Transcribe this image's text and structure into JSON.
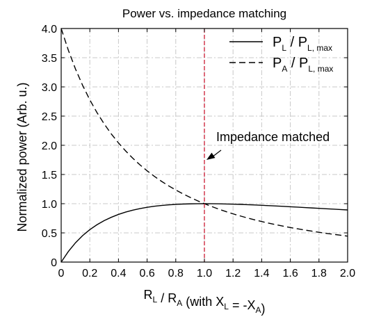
{
  "chart_data": {
    "type": "line",
    "title": "Power vs. impedance matching",
    "xlabel": {
      "parts": [
        {
          "text": "R",
          "sub": "L"
        },
        {
          "text": " / R",
          "sub": "A"
        },
        {
          "text": " (with X",
          "sub": "L"
        },
        {
          "text": " = -X",
          "sub": "A"
        },
        {
          "text": ")",
          "sub": ""
        }
      ]
    },
    "ylabel": "Normalized power (Arb. u.)",
    "xlim": [
      0,
      2.0
    ],
    "ylim": [
      0,
      4.0
    ],
    "xticks": [
      "0",
      "0.2",
      "0.4",
      "0.6",
      "0.8",
      "1.0",
      "1.2",
      "1.4",
      "1.6",
      "1.8",
      "2.0"
    ],
    "xtick_values": [
      0,
      0.2,
      0.4,
      0.6,
      0.8,
      1.0,
      1.2,
      1.4,
      1.6,
      1.8,
      2.0
    ],
    "yticks": [
      "0",
      "0.5",
      "1.0",
      "1.5",
      "2.0",
      "2.5",
      "3.0",
      "3.5",
      "4.0"
    ],
    "ytick_values": [
      0,
      0.5,
      1.0,
      1.5,
      2.0,
      2.5,
      3.0,
      3.5,
      4.0
    ],
    "grid": true,
    "legend_position": "top-right",
    "series": [
      {
        "name": "PL / PL,max",
        "label": {
          "p1": "P",
          "s1": "L",
          "slash": "/",
          "p2": "P",
          "s2": "L, max"
        },
        "style": "solid",
        "color": "#000000",
        "x": [
          0.0,
          0.05,
          0.1,
          0.15,
          0.2,
          0.25,
          0.3,
          0.35,
          0.4,
          0.45,
          0.5,
          0.55,
          0.6,
          0.65,
          0.7,
          0.75,
          0.8,
          0.85,
          0.9,
          0.95,
          1.0,
          1.05,
          1.1,
          1.15,
          1.2,
          1.25,
          1.3,
          1.35,
          1.4,
          1.45,
          1.5,
          1.55,
          1.6,
          1.65,
          1.7,
          1.75,
          1.8,
          1.85,
          1.9,
          1.95,
          2.0
        ],
        "y": [
          0.0,
          0.181,
          0.331,
          0.454,
          0.556,
          0.64,
          0.71,
          0.767,
          0.816,
          0.856,
          0.889,
          0.916,
          0.938,
          0.956,
          0.969,
          0.98,
          0.988,
          0.994,
          0.997,
          0.999,
          1.0,
          0.999,
          0.998,
          0.995,
          0.992,
          0.988,
          0.983,
          0.978,
          0.972,
          0.967,
          0.96,
          0.954,
          0.947,
          0.941,
          0.934,
          0.927,
          0.92,
          0.913,
          0.907,
          0.9,
          0.893
        ]
      },
      {
        "name": "PA / PL,max",
        "label": {
          "p1": "P",
          "s1": "A",
          "slash": "/",
          "p2": "P",
          "s2": "L, max"
        },
        "style": "dashed",
        "color": "#000000",
        "x": [
          0.0,
          0.05,
          0.1,
          0.15,
          0.2,
          0.25,
          0.3,
          0.35,
          0.4,
          0.45,
          0.5,
          0.55,
          0.6,
          0.65,
          0.7,
          0.75,
          0.8,
          0.85,
          0.9,
          0.95,
          1.0,
          1.05,
          1.1,
          1.15,
          1.2,
          1.25,
          1.3,
          1.35,
          1.4,
          1.45,
          1.5,
          1.55,
          1.6,
          1.65,
          1.7,
          1.75,
          1.8,
          1.85,
          1.9,
          1.95,
          2.0
        ],
        "y": [
          4.0,
          3.628,
          3.306,
          3.025,
          2.778,
          2.56,
          2.367,
          2.194,
          2.041,
          1.903,
          1.778,
          1.665,
          1.563,
          1.469,
          1.384,
          1.306,
          1.235,
          1.169,
          1.108,
          1.052,
          1.0,
          0.952,
          0.907,
          0.865,
          0.826,
          0.79,
          0.756,
          0.724,
          0.694,
          0.666,
          0.64,
          0.615,
          0.592,
          0.57,
          0.549,
          0.53,
          0.51,
          0.492,
          0.476,
          0.46,
          0.444
        ]
      }
    ],
    "vline": {
      "x": 1.0,
      "color": "#cc1a33",
      "style": "dashed"
    },
    "annotation": {
      "text": "Impedance matched",
      "arrow_to": {
        "x": 1.0,
        "y": 1.75
      }
    }
  }
}
